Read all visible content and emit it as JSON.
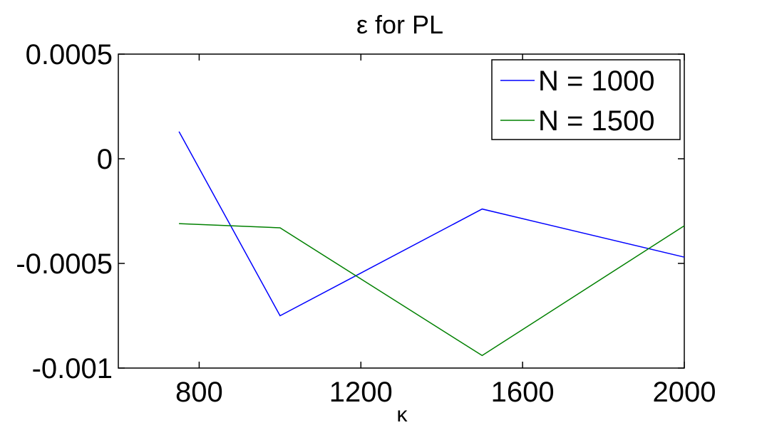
{
  "chart_data": {
    "type": "line",
    "title": "ε for PL",
    "xlabel": "κ",
    "ylabel": "",
    "xlim": [
      600,
      2000
    ],
    "ylim": [
      -0.001,
      0.0005
    ],
    "xticks": [
      800,
      1200,
      1600,
      2000
    ],
    "xtick_labels": [
      "800",
      "1200",
      "1600",
      "2000"
    ],
    "yticks": [
      -0.001,
      -0.0005,
      0,
      0.0005
    ],
    "ytick_labels": [
      "-0.001",
      "-0.0005",
      "0",
      "0.0005"
    ],
    "grid": false,
    "legend_position": "top-right",
    "series": [
      {
        "name": "N = 1000",
        "color": "#0000ff",
        "x": [
          750,
          1000,
          1500,
          2000
        ],
        "y": [
          0.00013,
          -0.00075,
          -0.00024,
          -0.00047
        ]
      },
      {
        "name": "N = 1500",
        "color": "#008000",
        "x": [
          750,
          1000,
          1500,
          2000
        ],
        "y": [
          -0.00031,
          -0.00033,
          -0.00094,
          -0.00032
        ]
      }
    ]
  }
}
